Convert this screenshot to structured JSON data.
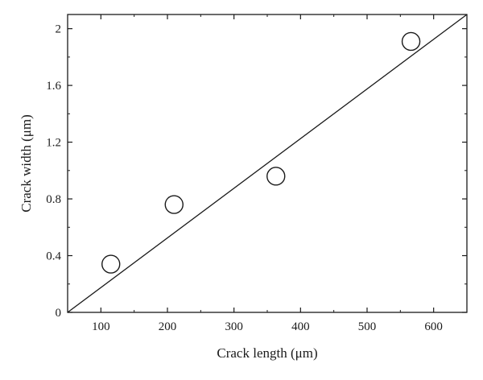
{
  "chart_data": {
    "type": "scatter",
    "xlabel": "Crack length (μm)",
    "ylabel": "Crack width (μm)",
    "xlim": [
      50,
      650
    ],
    "ylim": [
      0,
      2.1
    ],
    "x_ticks": [
      100,
      200,
      300,
      400,
      500,
      600
    ],
    "y_ticks": [
      0,
      0.4,
      0.8,
      1.2,
      1.6,
      2
    ],
    "x_tick_labels": [
      "100",
      "200",
      "300",
      "400",
      "500",
      "600"
    ],
    "y_tick_labels": [
      "0",
      "0.4",
      "0.8",
      "1.2",
      "1.6",
      "2"
    ],
    "series": [
      {
        "marker": "open-circle",
        "x": [
          115,
          210,
          363,
          566
        ],
        "y": [
          0.34,
          0.76,
          0.96,
          1.91
        ]
      }
    ],
    "fit_line": {
      "x": [
        50,
        650
      ],
      "y": [
        0,
        2.1
      ]
    },
    "grid": false,
    "legend": "none"
  }
}
